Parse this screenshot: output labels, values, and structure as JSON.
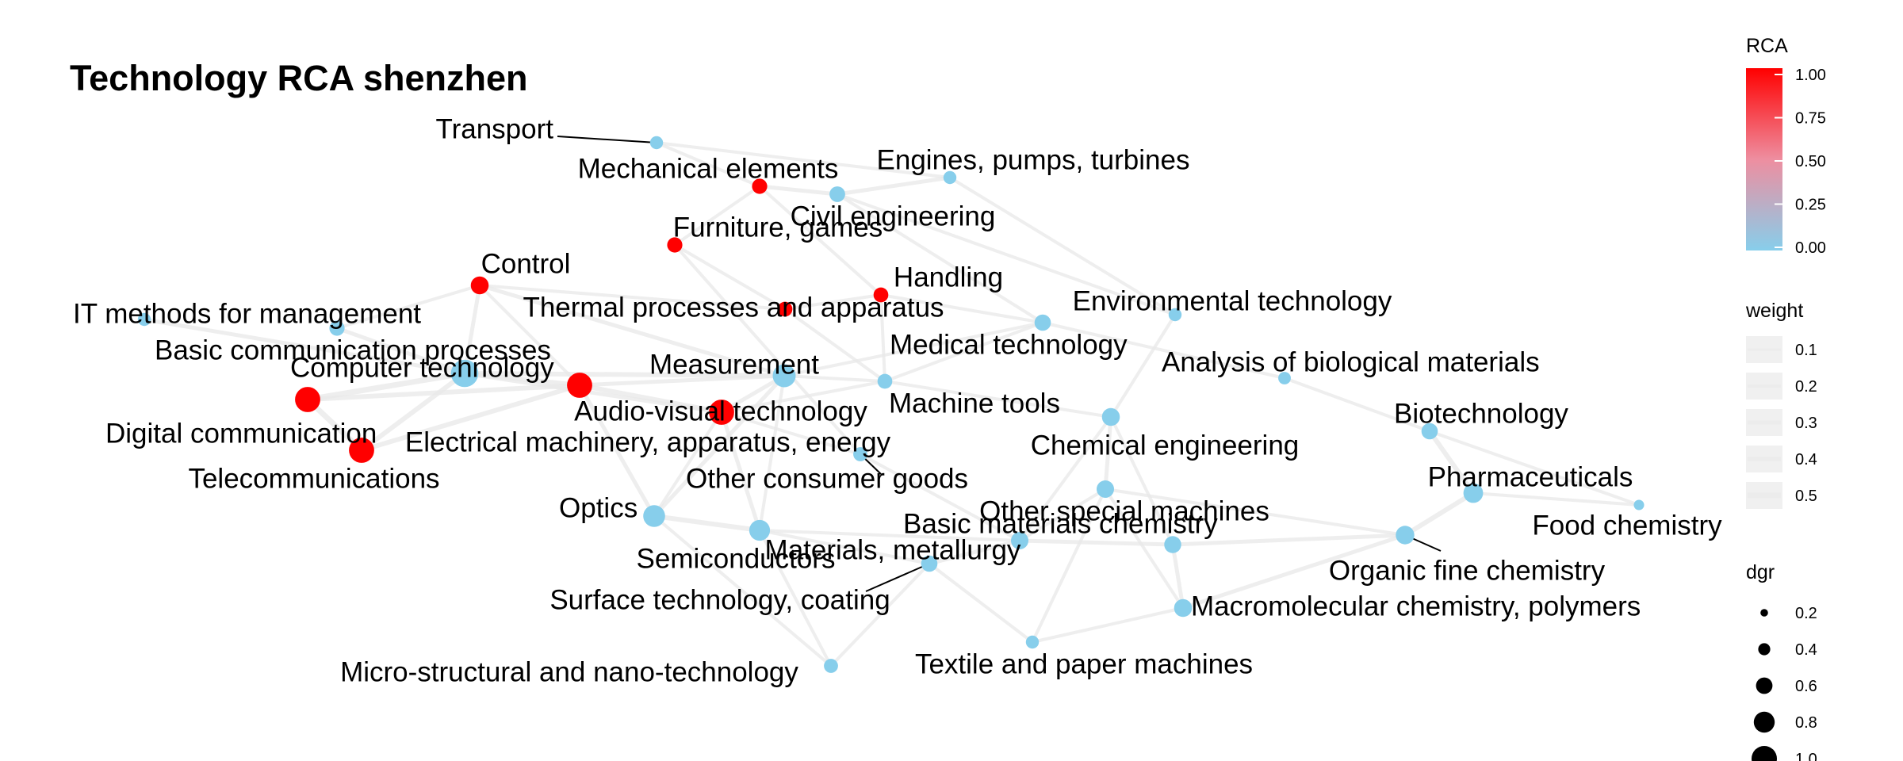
{
  "chart_data": {
    "type": "network",
    "title": "Technology RCA shenzhen",
    "nodes": [
      {
        "id": "transport",
        "label": "Transport",
        "rca": 0.0,
        "dgr": 0.3
      },
      {
        "id": "mech",
        "label": "Mechanical elements",
        "rca": 1.0,
        "dgr": 0.4
      },
      {
        "id": "engines",
        "label": "Engines, pumps, turbines",
        "rca": 0.0,
        "dgr": 0.3
      },
      {
        "id": "civil",
        "label": "Civil engineering",
        "rca": 0.0,
        "dgr": 0.42
      },
      {
        "id": "furniture",
        "label": "Furniture, games",
        "rca": 1.0,
        "dgr": 0.4
      },
      {
        "id": "handling",
        "label": "Handling",
        "rca": 1.0,
        "dgr": 0.38
      },
      {
        "id": "control",
        "label": "Control",
        "rca": 1.0,
        "dgr": 0.52
      },
      {
        "id": "thermal",
        "label": "Thermal processes and apparatus",
        "rca": 1.0,
        "dgr": 0.38
      },
      {
        "id": "itmgmt",
        "label": "IT methods for management",
        "rca": 0.0,
        "dgr": 0.3
      },
      {
        "id": "envtech",
        "label": "Environmental technology",
        "rca": 0.0,
        "dgr": 0.3
      },
      {
        "id": "basiccomm",
        "label": "Basic communication processes",
        "rca": 0.0,
        "dgr": 0.4
      },
      {
        "id": "medtech",
        "label": "Medical technology",
        "rca": 0.0,
        "dgr": 0.45
      },
      {
        "id": "computer",
        "label": "Computer technology",
        "rca": 0.0,
        "dgr": 0.95
      },
      {
        "id": "measurement",
        "label": "Measurement",
        "rca": 0.0,
        "dgr": 0.75
      },
      {
        "id": "bioanalysis",
        "label": "Analysis of biological materials",
        "rca": 0.0,
        "dgr": 0.28
      },
      {
        "id": "digital",
        "label": "Digital communication",
        "rca": 1.0,
        "dgr": 0.85
      },
      {
        "id": "av",
        "label": "Audio-visual technology",
        "rca": 1.0,
        "dgr": 0.85
      },
      {
        "id": "machinetools",
        "label": "Machine tools",
        "rca": 0.0,
        "dgr": 0.38
      },
      {
        "id": "electrical",
        "label": "Electrical machinery, apparatus, energy",
        "rca": 1.0,
        "dgr": 0.85
      },
      {
        "id": "chemeng",
        "label": "Chemical engineering",
        "rca": 0.0,
        "dgr": 0.52
      },
      {
        "id": "biotech",
        "label": "Biotechnology",
        "rca": 0.0,
        "dgr": 0.45
      },
      {
        "id": "telecom",
        "label": "Telecommunications",
        "rca": 1.0,
        "dgr": 0.85
      },
      {
        "id": "otherconsumer",
        "label": "Other consumer goods",
        "rca": 0.0,
        "dgr": 0.35
      },
      {
        "id": "pharma",
        "label": "Pharmaceuticals",
        "rca": 0.0,
        "dgr": 0.6
      },
      {
        "id": "optics",
        "label": "Optics",
        "rca": 0.0,
        "dgr": 0.7
      },
      {
        "id": "foodchem",
        "label": "Food chemistry",
        "rca": 0.0,
        "dgr": 0.18
      },
      {
        "id": "otherspecial",
        "label": "Other special machines",
        "rca": 0.0,
        "dgr": 0.5
      },
      {
        "id": "materials",
        "label": "Materials, metallurgy",
        "rca": 0.0,
        "dgr": 0.5
      },
      {
        "id": "semis",
        "label": "Semiconductors",
        "rca": 0.0,
        "dgr": 0.65
      },
      {
        "id": "orgfine",
        "label": "Organic fine chemistry",
        "rca": 0.0,
        "dgr": 0.55
      },
      {
        "id": "basicmat",
        "label": "Basic materials chemistry",
        "rca": 0.0,
        "dgr": 0.48
      },
      {
        "id": "surface",
        "label": "Surface technology, coating",
        "rca": 0.0,
        "dgr": 0.45
      },
      {
        "id": "macromol",
        "label": "Macromolecular chemistry, polymers",
        "rca": 0.0,
        "dgr": 0.52
      },
      {
        "id": "textile",
        "label": "Textile and paper machines",
        "rca": 0.0,
        "dgr": 0.3
      },
      {
        "id": "micro",
        "label": "Micro-structural and nano-technology",
        "rca": 0.0,
        "dgr": 0.35
      }
    ],
    "edges": [
      [
        "digital",
        "telecom",
        0.5
      ],
      [
        "digital",
        "computer",
        0.5
      ],
      [
        "digital",
        "av",
        0.4
      ],
      [
        "telecom",
        "computer",
        0.4
      ],
      [
        "telecom",
        "av",
        0.4
      ],
      [
        "computer",
        "av",
        0.4
      ],
      [
        "computer",
        "basiccomm",
        0.3
      ],
      [
        "computer",
        "itmgmt",
        0.3
      ],
      [
        "computer",
        "control",
        0.3
      ],
      [
        "computer",
        "measurement",
        0.4
      ],
      [
        "computer",
        "electrical",
        0.3
      ],
      [
        "av",
        "electrical",
        0.4
      ],
      [
        "av",
        "measurement",
        0.3
      ],
      [
        "av",
        "optics",
        0.3
      ],
      [
        "av",
        "control",
        0.2
      ],
      [
        "measurement",
        "electrical",
        0.3
      ],
      [
        "measurement",
        "control",
        0.3
      ],
      [
        "measurement",
        "medtech",
        0.2
      ],
      [
        "measurement",
        "machinetools",
        0.2
      ],
      [
        "measurement",
        "optics",
        0.3
      ],
      [
        "measurement",
        "semis",
        0.2
      ],
      [
        "electrical",
        "semis",
        0.3
      ],
      [
        "electrical",
        "optics",
        0.2
      ],
      [
        "electrical",
        "machinetools",
        0.2
      ],
      [
        "electrical",
        "otherconsumer",
        0.2
      ],
      [
        "optics",
        "semis",
        0.4
      ],
      [
        "semis",
        "surface",
        0.2
      ],
      [
        "semis",
        "micro",
        0.2
      ],
      [
        "semis",
        "materials",
        0.2
      ],
      [
        "materials",
        "basicmat",
        0.3
      ],
      [
        "materials",
        "surface",
        0.3
      ],
      [
        "materials",
        "otherspecial",
        0.2
      ],
      [
        "basicmat",
        "macromol",
        0.3
      ],
      [
        "basicmat",
        "orgfine",
        0.3
      ],
      [
        "basicmat",
        "chemeng",
        0.2
      ],
      [
        "orgfine",
        "pharma",
        0.4
      ],
      [
        "orgfine",
        "macromol",
        0.3
      ],
      [
        "pharma",
        "biotech",
        0.4
      ],
      [
        "pharma",
        "foodchem",
        0.2
      ],
      [
        "biotech",
        "bioanalysis",
        0.2
      ],
      [
        "biotech",
        "foodchem",
        0.2
      ],
      [
        "chemeng",
        "envtech",
        0.2
      ],
      [
        "chemeng",
        "otherspecial",
        0.3
      ],
      [
        "chemeng",
        "machinetools",
        0.2
      ],
      [
        "chemeng",
        "materials",
        0.2
      ],
      [
        "otherspecial",
        "macromol",
        0.2
      ],
      [
        "otherspecial",
        "textile",
        0.2
      ],
      [
        "otherspecial",
        "orgfine",
        0.2
      ],
      [
        "machinetools",
        "medtech",
        0.2
      ],
      [
        "machinetools",
        "handling",
        0.2
      ],
      [
        "machinetools",
        "thermal",
        0.2
      ],
      [
        "thermal",
        "handling",
        0.2
      ],
      [
        "thermal",
        "furniture",
        0.2
      ],
      [
        "thermal",
        "control",
        0.2
      ],
      [
        "furniture",
        "mech",
        0.2
      ],
      [
        "mech",
        "civil",
        0.3
      ],
      [
        "civil",
        "engines",
        0.3
      ],
      [
        "engines",
        "transport",
        0.2
      ],
      [
        "mech",
        "transport",
        0.2
      ],
      [
        "engines",
        "envtech",
        0.2
      ],
      [
        "medtech",
        "civil",
        0.2
      ],
      [
        "handling",
        "mech",
        0.2
      ],
      [
        "control",
        "basiccomm",
        0.2
      ],
      [
        "textile",
        "surface",
        0.2
      ],
      [
        "textile",
        "macromol",
        0.2
      ],
      [
        "micro",
        "surface",
        0.2
      ],
      [
        "micro",
        "optics",
        0.2
      ],
      [
        "otherconsumer",
        "materials",
        0.2
      ],
      [
        "otherconsumer",
        "furniture",
        0.2
      ],
      [
        "medtech",
        "bioanalysis",
        0.2
      ],
      [
        "envtech",
        "civil",
        0.2
      ],
      [
        "handling",
        "medtech",
        0.2
      ]
    ],
    "legend": {
      "rca": {
        "title": "RCA",
        "ticks": [
          "1.00",
          "0.75",
          "0.50",
          "0.25",
          "0.00"
        ],
        "low_color": "#87ceeb",
        "high_color": "#ff0000"
      },
      "weight": {
        "title": "weight",
        "ticks": [
          "0.1",
          "0.2",
          "0.3",
          "0.4",
          "0.5"
        ],
        "color": "#f0f0f0"
      },
      "dgr": {
        "title": "dgr",
        "ticks": [
          "0.2",
          "0.4",
          "0.6",
          "0.8",
          "1.0"
        ]
      }
    }
  }
}
